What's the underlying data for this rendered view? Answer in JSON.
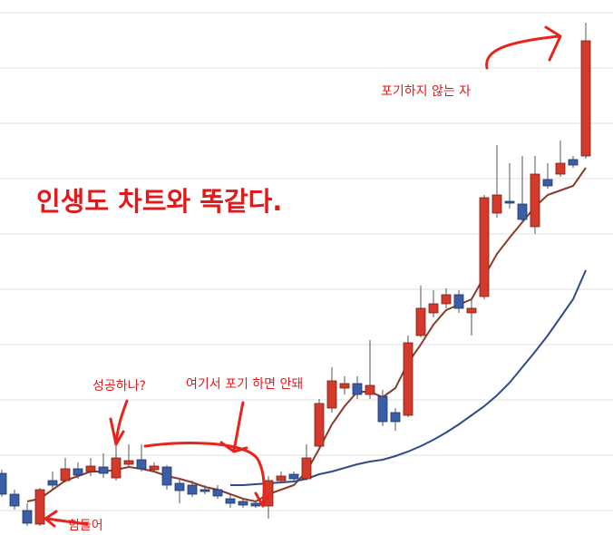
{
  "chart_data": {
    "type": "candlestick",
    "title": "인생도 차트와 똑같다.",
    "annotation_top": "포기하지 않는 자",
    "annotation_success": "성공하나?",
    "annotation_dont_quit": "여기서 포기 하면 안돼",
    "annotation_hard": "힘들어",
    "up_color": "#d33a2c",
    "down_color": "#3b5ea6",
    "ylim": [
      0,
      59
    ],
    "yticks": [
      2.7,
      8.8,
      14.9,
      21,
      27.1,
      33.2,
      39.3,
      45.4,
      51.5,
      57.6
    ],
    "grid": true,
    "open": [
      6.8,
      4.5,
      2.7,
      1.2,
      6.0,
      6.0,
      7.3,
      7.0,
      7.5,
      6.3,
      7.8,
      8.3,
      7.2,
      7.5,
      5.7,
      5.5,
      5.0,
      5.0,
      4.0,
      3.7,
      3.5,
      3.2,
      6.0,
      6.7,
      6.2,
      9.8,
      14.0,
      16.2,
      16.7,
      15.5,
      15.3,
      13.5,
      13.2,
      22.0,
      24.5,
      25.5,
      26.5,
      24.5,
      26.3,
      35.5,
      36.8,
      36.5,
      34.0,
      39.2,
      39.8,
      41.4,
      41.8
    ],
    "high": [
      7.2,
      5.0,
      3.5,
      5.2,
      7.0,
      8.5,
      8.0,
      8.5,
      9.0,
      10.0,
      10.0,
      10.0,
      8.0,
      7.7,
      6.2,
      6.0,
      5.5,
      5.5,
      4.5,
      4.0,
      3.8,
      6.5,
      7.0,
      7.0,
      10.0,
      15.0,
      18.5,
      17.5,
      17.5,
      21.5,
      16.0,
      14.0,
      22.0,
      27.5,
      27.0,
      27.2,
      27.0,
      26.0,
      37.5,
      43.0,
      41.0,
      41.8,
      41.8,
      41.0,
      43.5,
      41.8,
      56.5
    ],
    "low": [
      4.2,
      2.8,
      1.0,
      1.0,
      5.0,
      5.8,
      6.2,
      6.5,
      6.3,
      6.0,
      7.5,
      7.0,
      7.0,
      5.0,
      3.5,
      4.2,
      4.5,
      4.0,
      3.0,
      3.0,
      3.0,
      1.8,
      5.7,
      6.0,
      6.0,
      9.5,
      13.5,
      15.5,
      15.0,
      15.0,
      12.0,
      11.5,
      13.0,
      21.8,
      24.0,
      25.0,
      24.5,
      22.0,
      26.0,
      35.0,
      36.0,
      34.5,
      33.2,
      38.2,
      39.5,
      40.5,
      41.5
    ],
    "close": [
      4.5,
      3.2,
      1.3,
      5.0,
      5.5,
      7.3,
      6.6,
      7.6,
      6.8,
      8.5,
      8.2,
      7.3,
      7.6,
      5.5,
      4.9,
      4.5,
      4.8,
      4.3,
      3.5,
      3.3,
      3.2,
      6.0,
      6.5,
      6.2,
      8.5,
      14.5,
      17.0,
      16.7,
      15.5,
      16.5,
      12.5,
      12.5,
      21.2,
      25.0,
      25.5,
      26.5,
      25.0,
      25.0,
      37.2,
      37.5,
      36.6,
      34.8,
      39.8,
      38.5,
      41.0,
      40.8,
      54.5
    ],
    "series": [
      {
        "color": "#8a3b2b",
        "values": [
          null,
          null,
          3.7,
          4.0,
          5.0,
          6.0,
          6.5,
          7.0,
          7.0,
          7.2,
          7.5,
          7.3,
          7.0,
          6.5,
          6.2,
          5.8,
          5.3,
          5.0,
          4.5,
          4.0,
          3.7,
          4.5,
          5.0,
          5.5,
          7.0,
          9.5,
          12.2,
          14.2,
          15.8,
          15.8,
          15.2,
          16.2,
          19.0,
          21.0,
          23.2,
          24.8,
          25.4,
          26.0,
          28.5,
          31.0,
          32.8,
          34.5,
          36.2,
          37.5,
          38.0,
          38.5,
          40.5
        ]
      },
      {
        "color": "#2f4a8a",
        "values": [
          null,
          null,
          null,
          null,
          null,
          null,
          null,
          null,
          null,
          null,
          null,
          null,
          null,
          null,
          null,
          null,
          null,
          null,
          5.5,
          5.5,
          5.6,
          5.7,
          5.8,
          5.9,
          6.2,
          6.7,
          7.0,
          7.4,
          7.8,
          8.1,
          8.3,
          8.7,
          9.2,
          9.8,
          10.5,
          11.3,
          12.2,
          13.2,
          14.2,
          15.4,
          16.8,
          18.5,
          20.2,
          22.0,
          24.0,
          26.0,
          29.2
        ]
      }
    ]
  }
}
